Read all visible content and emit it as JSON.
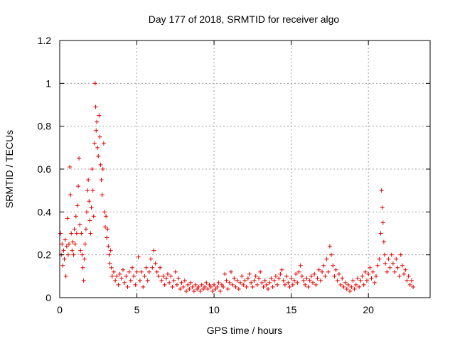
{
  "chart_data": {
    "type": "scatter",
    "title": "Day 177 of 2018, SRMTID for receiver algo",
    "xlabel": "GPS time / hours",
    "ylabel": "SRMTID / TECUs",
    "xlim": [
      0,
      24
    ],
    "ylim": [
      0,
      1.2
    ],
    "x_ticks": [
      0,
      5,
      10,
      15,
      20
    ],
    "y_ticks": [
      0,
      0.2,
      0.4,
      0.6,
      0.8,
      1,
      1.2
    ],
    "x_tick_labels": [
      "0",
      "5",
      "10",
      "15",
      "20"
    ],
    "y_tick_labels": [
      "0",
      "0.2",
      "0.4",
      "0.6",
      "0.8",
      "1",
      "1.2"
    ],
    "grid": true,
    "marker": "plus",
    "series_color": "#e00000",
    "series": [
      {
        "name": "SRMTID",
        "points": [
          [
            0.05,
            0.3
          ],
          [
            0.1,
            0.2
          ],
          [
            0.15,
            0.25
          ],
          [
            0.2,
            0.15
          ],
          [
            0.25,
            0.22
          ],
          [
            0.3,
            0.18
          ],
          [
            0.35,
            0.27
          ],
          [
            0.4,
            0.1
          ],
          [
            0.45,
            0.24
          ],
          [
            0.5,
            0.37
          ],
          [
            0.55,
            0.2
          ],
          [
            0.6,
            0.25
          ],
          [
            0.65,
            0.61
          ],
          [
            0.7,
            0.48
          ],
          [
            0.75,
            0.3
          ],
          [
            0.8,
            0.22
          ],
          [
            0.85,
            0.26
          ],
          [
            0.9,
            0.2
          ],
          [
            0.95,
            0.32
          ],
          [
            1.0,
            0.25
          ],
          [
            1.05,
            0.38
          ],
          [
            1.1,
            0.3
          ],
          [
            1.15,
            0.43
          ],
          [
            1.2,
            0.52
          ],
          [
            1.25,
            0.65
          ],
          [
            1.3,
            0.34
          ],
          [
            1.35,
            0.22
          ],
          [
            1.4,
            0.3
          ],
          [
            1.45,
            0.2
          ],
          [
            1.5,
            0.14
          ],
          [
            1.55,
            0.08
          ],
          [
            1.6,
            0.18
          ],
          [
            1.65,
            0.25
          ],
          [
            1.7,
            0.32
          ],
          [
            1.75,
            0.4
          ],
          [
            1.8,
            0.5
          ],
          [
            1.85,
            0.55
          ],
          [
            1.9,
            0.45
          ],
          [
            1.95,
            0.36
          ],
          [
            2.0,
            0.3
          ],
          [
            2.05,
            0.42
          ],
          [
            2.1,
            0.6
          ],
          [
            2.15,
            0.5
          ],
          [
            2.2,
            0.38
          ],
          [
            2.25,
            0.72
          ],
          [
            2.3,
            1.0
          ],
          [
            2.33,
            0.89
          ],
          [
            2.36,
            0.78
          ],
          [
            2.4,
            0.82
          ],
          [
            2.45,
            0.7
          ],
          [
            2.5,
            0.66
          ],
          [
            2.55,
            0.85
          ],
          [
            2.6,
            0.75
          ],
          [
            2.65,
            0.62
          ],
          [
            2.7,
            0.55
          ],
          [
            2.75,
            0.48
          ],
          [
            2.8,
            0.6
          ],
          [
            2.85,
            0.72
          ],
          [
            2.9,
            0.4
          ],
          [
            2.95,
            0.33
          ],
          [
            3.0,
            0.38
          ],
          [
            3.05,
            0.28
          ],
          [
            3.1,
            0.32
          ],
          [
            3.15,
            0.24
          ],
          [
            3.2,
            0.2
          ],
          [
            3.25,
            0.16
          ],
          [
            3.3,
            0.22
          ],
          [
            3.35,
            0.14
          ],
          [
            3.4,
            0.1
          ],
          [
            3.5,
            0.12
          ],
          [
            3.6,
            0.08
          ],
          [
            3.7,
            0.1
          ],
          [
            3.8,
            0.06
          ],
          [
            3.9,
            0.11
          ],
          [
            4.0,
            0.09
          ],
          [
            4.1,
            0.13
          ],
          [
            4.2,
            0.07
          ],
          [
            4.3,
            0.1
          ],
          [
            4.4,
            0.05
          ],
          [
            4.5,
            0.12
          ],
          [
            4.6,
            0.08
          ],
          [
            4.7,
            0.14
          ],
          [
            4.8,
            0.1
          ],
          [
            4.9,
            0.06
          ],
          [
            5.0,
            0.12
          ],
          [
            5.1,
            0.19
          ],
          [
            5.2,
            0.08
          ],
          [
            5.3,
            0.12
          ],
          [
            5.4,
            0.05
          ],
          [
            5.5,
            0.1
          ],
          [
            5.6,
            0.14
          ],
          [
            5.7,
            0.08
          ],
          [
            5.8,
            0.12
          ],
          [
            5.9,
            0.18
          ],
          [
            6.0,
            0.14
          ],
          [
            6.1,
            0.22
          ],
          [
            6.2,
            0.16
          ],
          [
            6.3,
            0.12
          ],
          [
            6.4,
            0.1
          ],
          [
            6.5,
            0.14
          ],
          [
            6.6,
            0.08
          ],
          [
            6.7,
            0.1
          ],
          [
            6.8,
            0.06
          ],
          [
            6.9,
            0.09
          ],
          [
            7.0,
            0.11
          ],
          [
            7.1,
            0.07
          ],
          [
            7.2,
            0.1
          ],
          [
            7.3,
            0.05
          ],
          [
            7.4,
            0.08
          ],
          [
            7.5,
            0.12
          ],
          [
            7.6,
            0.06
          ],
          [
            7.7,
            0.09
          ],
          [
            7.8,
            0.04
          ],
          [
            7.9,
            0.07
          ],
          [
            8.0,
            0.05
          ],
          [
            8.1,
            0.08
          ],
          [
            8.2,
            0.03
          ],
          [
            8.3,
            0.06
          ],
          [
            8.4,
            0.04
          ],
          [
            8.5,
            0.07
          ],
          [
            8.6,
            0.05
          ],
          [
            8.7,
            0.03
          ],
          [
            8.8,
            0.06
          ],
          [
            8.9,
            0.04
          ],
          [
            9.0,
            0.05
          ],
          [
            9.1,
            0.03
          ],
          [
            9.2,
            0.06
          ],
          [
            9.3,
            0.04
          ],
          [
            9.4,
            0.05
          ],
          [
            9.5,
            0.07
          ],
          [
            9.6,
            0.04
          ],
          [
            9.7,
            0.06
          ],
          [
            9.8,
            0.05
          ],
          [
            9.9,
            0.03
          ],
          [
            10.0,
            0.06
          ],
          [
            10.1,
            0.04
          ],
          [
            10.2,
            0.05
          ],
          [
            10.3,
            0.07
          ],
          [
            10.4,
            0.03
          ],
          [
            10.5,
            0.06
          ],
          [
            10.6,
            0.05
          ],
          [
            10.7,
            0.11
          ],
          [
            10.8,
            0.08
          ],
          [
            10.9,
            0.04
          ],
          [
            11.0,
            0.07
          ],
          [
            11.1,
            0.12
          ],
          [
            11.2,
            0.06
          ],
          [
            11.3,
            0.09
          ],
          [
            11.4,
            0.05
          ],
          [
            11.5,
            0.08
          ],
          [
            11.6,
            0.04
          ],
          [
            11.7,
            0.07
          ],
          [
            11.8,
            0.1
          ],
          [
            11.9,
            0.06
          ],
          [
            12.0,
            0.08
          ],
          [
            12.1,
            0.05
          ],
          [
            12.2,
            0.09
          ],
          [
            12.3,
            0.11
          ],
          [
            12.4,
            0.07
          ],
          [
            12.5,
            0.05
          ],
          [
            12.6,
            0.08
          ],
          [
            12.7,
            0.1
          ],
          [
            12.8,
            0.06
          ],
          [
            12.9,
            0.09
          ],
          [
            13.0,
            0.12
          ],
          [
            13.1,
            0.07
          ],
          [
            13.2,
            0.05
          ],
          [
            13.3,
            0.08
          ],
          [
            13.4,
            0.06
          ],
          [
            13.5,
            0.04
          ],
          [
            13.6,
            0.07
          ],
          [
            13.7,
            0.09
          ],
          [
            13.8,
            0.05
          ],
          [
            13.9,
            0.08
          ],
          [
            14.0,
            0.1
          ],
          [
            14.1,
            0.06
          ],
          [
            14.2,
            0.09
          ],
          [
            14.3,
            0.11
          ],
          [
            14.4,
            0.13
          ],
          [
            14.5,
            0.08
          ],
          [
            14.6,
            0.06
          ],
          [
            14.7,
            0.1
          ],
          [
            14.8,
            0.07
          ],
          [
            14.9,
            0.05
          ],
          [
            15.0,
            0.09
          ],
          [
            15.1,
            0.06
          ],
          [
            15.2,
            0.08
          ],
          [
            15.3,
            0.11
          ],
          [
            15.4,
            0.07
          ],
          [
            15.5,
            0.12
          ],
          [
            15.6,
            0.15
          ],
          [
            15.7,
            0.1
          ],
          [
            15.8,
            0.08
          ],
          [
            15.9,
            0.06
          ],
          [
            16.0,
            0.09
          ],
          [
            16.1,
            0.05
          ],
          [
            16.2,
            0.08
          ],
          [
            16.3,
            0.1
          ],
          [
            16.4,
            0.07
          ],
          [
            16.5,
            0.11
          ],
          [
            16.6,
            0.06
          ],
          [
            16.7,
            0.09
          ],
          [
            16.8,
            0.13
          ],
          [
            16.9,
            0.08
          ],
          [
            17.0,
            0.12
          ],
          [
            17.1,
            0.15
          ],
          [
            17.2,
            0.1
          ],
          [
            17.3,
            0.18
          ],
          [
            17.4,
            0.12
          ],
          [
            17.5,
            0.24
          ],
          [
            17.6,
            0.2
          ],
          [
            17.7,
            0.15
          ],
          [
            17.8,
            0.1
          ],
          [
            17.9,
            0.13
          ],
          [
            18.0,
            0.08
          ],
          [
            18.1,
            0.11
          ],
          [
            18.2,
            0.06
          ],
          [
            18.3,
            0.09
          ],
          [
            18.4,
            0.05
          ],
          [
            18.5,
            0.07
          ],
          [
            18.6,
            0.04
          ],
          [
            18.7,
            0.06
          ],
          [
            18.8,
            0.03
          ],
          [
            18.9,
            0.05
          ],
          [
            19.0,
            0.08
          ],
          [
            19.1,
            0.04
          ],
          [
            19.2,
            0.06
          ],
          [
            19.3,
            0.09
          ],
          [
            19.4,
            0.05
          ],
          [
            19.5,
            0.08
          ],
          [
            19.6,
            0.1
          ],
          [
            19.7,
            0.06
          ],
          [
            19.8,
            0.12
          ],
          [
            19.9,
            0.08
          ],
          [
            20.0,
            0.11
          ],
          [
            20.1,
            0.14
          ],
          [
            20.2,
            0.09
          ],
          [
            20.3,
            0.12
          ],
          [
            20.4,
            0.07
          ],
          [
            20.5,
            0.1
          ],
          [
            20.6,
            0.15
          ],
          [
            20.7,
            0.18
          ],
          [
            20.8,
            0.3
          ],
          [
            20.85,
            0.5
          ],
          [
            20.9,
            0.42
          ],
          [
            20.95,
            0.35
          ],
          [
            21.0,
            0.26
          ],
          [
            21.05,
            0.2
          ],
          [
            21.1,
            0.16
          ],
          [
            21.2,
            0.12
          ],
          [
            21.3,
            0.18
          ],
          [
            21.4,
            0.14
          ],
          [
            21.5,
            0.2
          ],
          [
            21.6,
            0.16
          ],
          [
            21.7,
            0.12
          ],
          [
            21.8,
            0.18
          ],
          [
            21.9,
            0.14
          ],
          [
            22.0,
            0.1
          ],
          [
            22.1,
            0.2
          ],
          [
            22.2,
            0.15
          ],
          [
            22.3,
            0.11
          ],
          [
            22.4,
            0.13
          ],
          [
            22.5,
            0.08
          ],
          [
            22.6,
            0.1
          ],
          [
            22.7,
            0.06
          ],
          [
            22.8,
            0.08
          ],
          [
            22.9,
            0.05
          ]
        ]
      }
    ]
  }
}
